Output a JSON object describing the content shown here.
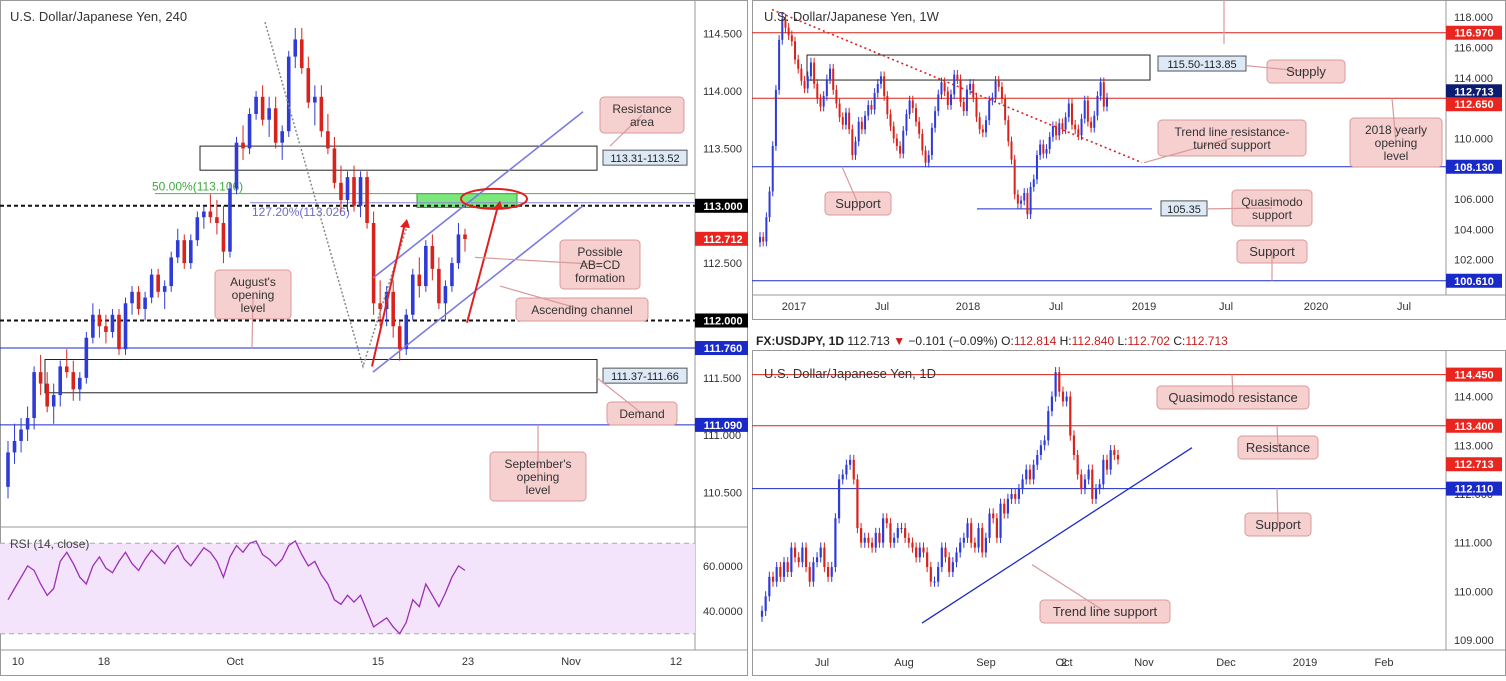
{
  "chart_data": [
    {
      "type": "candlestick",
      "title": "U.S. Dollar/Japanese Yen, 240",
      "y_ticks": [
        "114.500",
        "114.000",
        "113.500",
        "113.000",
        "112.500",
        "112.000",
        "111.500",
        "111.000",
        "110.500"
      ],
      "x_ticks": [
        "10",
        "18",
        "Oct",
        "15",
        "23",
        "Nov",
        "12"
      ],
      "ylim": [
        110.2,
        114.75
      ],
      "price_badges": [
        {
          "value": 113.0,
          "text": "113.000",
          "bg": "#000000"
        },
        {
          "value": 112.712,
          "text": "112.712",
          "bg": "#e8261f"
        },
        {
          "value": 112.0,
          "text": "112.000",
          "bg": "#000000"
        },
        {
          "value": 111.76,
          "text": "111.760",
          "bg": "#1a2ac8"
        },
        {
          "value": 111.09,
          "text": "111.090",
          "bg": "#1a2ac8"
        }
      ],
      "zones": [
        {
          "label": "113.31-113.52",
          "low": 113.31,
          "high": 113.52
        },
        {
          "label": "111.37-111.66",
          "low": 111.37,
          "high": 111.66
        }
      ],
      "fib_labels": {
        "fib50": "50.00%(113.106)",
        "fib127": "127.20%(113.026)"
      },
      "callouts": {
        "resistance_area": [
          "Resistance",
          "area"
        ],
        "ab_cd": [
          "Possible",
          "AB=CD",
          "formation"
        ],
        "ascending_channel": [
          "Ascending channel"
        ],
        "augusts_opening": [
          "August's",
          "opening",
          "level"
        ],
        "demand": [
          "Demand"
        ],
        "septembers_opening": [
          "September's",
          "opening",
          "level"
        ]
      },
      "rsi": {
        "label": "RSI (14, close)",
        "y_ticks": [
          "60.0000",
          "40.0000"
        ],
        "upper": 70,
        "lower": 30
      },
      "candles": [
        [
          110.55,
          110.95,
          110.45,
          110.85
        ],
        [
          110.85,
          111.1,
          110.75,
          110.95
        ],
        [
          110.95,
          111.15,
          110.85,
          111.05
        ],
        [
          111.05,
          111.25,
          110.95,
          111.15
        ],
        [
          111.15,
          111.6,
          111.05,
          111.55
        ],
        [
          111.55,
          111.7,
          111.35,
          111.45
        ],
        [
          111.45,
          111.55,
          111.2,
          111.25
        ],
        [
          111.25,
          111.45,
          111.1,
          111.35
        ],
        [
          111.35,
          111.65,
          111.25,
          111.6
        ],
        [
          111.6,
          111.75,
          111.5,
          111.55
        ],
        [
          111.55,
          111.65,
          111.3,
          111.4
        ],
        [
          111.4,
          111.55,
          111.3,
          111.5
        ],
        [
          111.5,
          111.9,
          111.45,
          111.85
        ],
        [
          111.85,
          112.15,
          111.8,
          112.05
        ],
        [
          112.05,
          112.1,
          111.85,
          111.95
        ],
        [
          111.95,
          112.05,
          111.8,
          111.9
        ],
        [
          111.9,
          112.1,
          111.85,
          112.05
        ],
        [
          112.05,
          112.1,
          111.7,
          111.75
        ],
        [
          111.75,
          112.2,
          111.7,
          112.15
        ],
        [
          112.15,
          112.3,
          112.05,
          112.25
        ],
        [
          112.25,
          112.3,
          112.05,
          112.1
        ],
        [
          112.1,
          112.25,
          112.0,
          112.2
        ],
        [
          112.2,
          112.45,
          112.15,
          112.4
        ],
        [
          112.4,
          112.45,
          112.2,
          112.25
        ],
        [
          112.25,
          112.35,
          112.1,
          112.3
        ],
        [
          112.3,
          112.6,
          112.25,
          112.55
        ],
        [
          112.55,
          112.8,
          112.5,
          112.7
        ],
        [
          112.7,
          112.75,
          112.45,
          112.5
        ],
        [
          112.5,
          112.75,
          112.45,
          112.7
        ],
        [
          112.7,
          112.95,
          112.65,
          112.9
        ],
        [
          112.9,
          113.0,
          112.8,
          112.95
        ],
        [
          112.95,
          113.1,
          112.85,
          112.9
        ],
        [
          112.9,
          113.05,
          112.75,
          112.85
        ],
        [
          112.85,
          113.0,
          112.5,
          112.6
        ],
        [
          112.6,
          113.2,
          112.55,
          113.15
        ],
        [
          113.15,
          113.6,
          113.1,
          113.55
        ],
        [
          113.55,
          113.7,
          113.4,
          113.5
        ],
        [
          113.5,
          113.85,
          113.45,
          113.8
        ],
        [
          113.8,
          114.0,
          113.75,
          113.95
        ],
        [
          113.95,
          114.05,
          113.7,
          113.75
        ],
        [
          113.75,
          113.95,
          113.6,
          113.85
        ],
        [
          113.85,
          113.95,
          113.5,
          113.55
        ],
        [
          113.55,
          113.7,
          113.4,
          113.65
        ],
        [
          113.65,
          114.35,
          113.6,
          114.3
        ],
        [
          114.3,
          114.55,
          114.2,
          114.45
        ],
        [
          114.45,
          114.55,
          114.15,
          114.2
        ],
        [
          114.2,
          114.3,
          113.85,
          113.9
        ],
        [
          113.9,
          114.05,
          113.7,
          113.95
        ],
        [
          113.95,
          114.05,
          113.6,
          113.65
        ],
        [
          113.65,
          113.8,
          113.45,
          113.5
        ],
        [
          113.5,
          113.6,
          113.15,
          113.2
        ],
        [
          113.2,
          113.35,
          112.95,
          113.05
        ],
        [
          113.05,
          113.3,
          112.95,
          113.25
        ],
        [
          113.25,
          113.35,
          112.95,
          113.0
        ],
        [
          113.0,
          113.3,
          112.9,
          113.25
        ],
        [
          113.25,
          113.3,
          112.8,
          112.85
        ],
        [
          112.85,
          112.95,
          112.05,
          112.15
        ],
        [
          112.15,
          112.35,
          111.95,
          112.1
        ],
        [
          112.1,
          112.3,
          111.95,
          112.25
        ],
        [
          112.25,
          112.35,
          111.85,
          111.95
        ],
        [
          111.95,
          112.0,
          111.65,
          111.75
        ],
        [
          111.75,
          112.1,
          111.7,
          112.05
        ],
        [
          112.05,
          112.45,
          112.0,
          112.4
        ],
        [
          112.4,
          112.55,
          112.2,
          112.3
        ],
        [
          112.3,
          112.7,
          112.25,
          112.65
        ],
        [
          112.65,
          112.75,
          112.35,
          112.45
        ],
        [
          112.45,
          112.55,
          112.1,
          112.15
        ],
        [
          112.15,
          112.35,
          112.0,
          112.3
        ],
        [
          112.3,
          112.55,
          112.25,
          112.5
        ],
        [
          112.5,
          112.85,
          112.45,
          112.75
        ],
        [
          112.75,
          112.8,
          112.6,
          112.71
        ]
      ],
      "rsi_values": [
        45,
        50,
        55,
        60,
        58,
        52,
        47,
        50,
        62,
        66,
        61,
        55,
        52,
        60,
        64,
        59,
        57,
        62,
        66,
        61,
        58,
        63,
        67,
        64,
        61,
        66,
        69,
        63,
        60,
        64,
        68,
        66,
        62,
        55,
        64,
        69,
        66,
        70,
        71,
        65,
        63,
        60,
        63,
        69,
        71,
        65,
        60,
        62,
        56,
        52,
        45,
        43,
        47,
        44,
        47,
        40,
        33,
        35,
        37,
        33,
        30,
        35,
        45,
        42,
        52,
        47,
        42,
        48,
        55,
        60,
        58
      ]
    },
    {
      "type": "candlestick",
      "title": "U.S. Dollar/Japanese Yen, 1W",
      "y_ticks": [
        "118.000",
        "116.000",
        "114.000",
        "110.000",
        "106.000",
        "104.000",
        "102.000"
      ],
      "x_ticks": [
        "2017",
        "Jul",
        "2018",
        "Jul",
        "2019",
        "Jul",
        "2020",
        "Jul"
      ],
      "ylim": [
        100.0,
        118.8
      ],
      "price_badges": [
        {
          "value": 116.97,
          "text": "116.970",
          "bg": "#e8261f"
        },
        {
          "value": 112.713,
          "text": "112.713",
          "bg": "#0c1c70"
        },
        {
          "value": 112.65,
          "text": "112.650",
          "bg": "#e8261f"
        },
        {
          "value": 108.13,
          "text": "108.130",
          "bg": "#1a2ac8"
        },
        {
          "value": 100.61,
          "text": "100.610",
          "bg": "#1a2ac8"
        }
      ],
      "zones": [
        {
          "label": "115.50-113.85",
          "low": 113.85,
          "high": 115.5
        }
      ],
      "level_labels": [
        {
          "text": "105.35",
          "value": 105.35
        }
      ],
      "callouts": {
        "supply": [
          "Supply"
        ],
        "trend_resistance": [
          "Trend line resistance-",
          "turned support"
        ],
        "yearly_opening": [
          "2018 yearly",
          "opening",
          "level"
        ],
        "support": [
          "Support"
        ],
        "quasimodo_support": [
          "Quasimodo",
          "support"
        ],
        "support_lower": [
          "Support"
        ]
      },
      "closes": [
        103.5,
        103.2,
        104.8,
        106.5,
        109.5,
        113.2,
        116.5,
        117.9,
        117.3,
        116.8,
        116.4,
        115.2,
        114.6,
        113.8,
        113.3,
        114.1,
        115.0,
        113.6,
        112.6,
        112.1,
        112.8,
        113.9,
        114.6,
        113.2,
        112.3,
        111.4,
        110.9,
        111.7,
        110.6,
        108.9,
        109.8,
        111.1,
        110.6,
        111.5,
        112.2,
        111.9,
        113.0,
        113.6,
        114.1,
        112.8,
        111.6,
        110.8,
        110.0,
        109.5,
        109.0,
        110.5,
        111.6,
        112.5,
        112.0,
        111.1,
        110.3,
        109.2,
        108.4,
        108.9,
        110.7,
        111.8,
        112.9,
        113.7,
        113.1,
        112.2,
        112.9,
        114.2,
        113.9,
        112.4,
        111.8,
        113.2,
        113.6,
        112.7,
        111.4,
        110.6,
        110.4,
        111.2,
        112.5,
        112.7,
        113.8,
        113.4,
        112.6,
        111.2,
        109.8,
        108.6,
        106.3,
        105.7,
        105.9,
        106.4,
        105.0,
        106.8,
        107.3,
        108.9,
        109.6,
        109.0,
        109.3,
        110.1,
        110.8,
        110.2,
        111.0,
        110.6,
        111.4,
        112.3,
        110.9,
        110.6,
        110.2,
        111.3,
        112.5,
        111.1,
        110.7,
        111.5,
        112.8,
        113.7,
        112.1,
        112.7
      ]
    },
    {
      "type": "candlestick",
      "title": "U.S. Dollar/Japanese Yen, 1D",
      "header": {
        "symbol": "FX:USDJPY, 1D",
        "price": "112.713",
        "change": "−0.101 (−0.09%)",
        "o_label": "O:",
        "o": "112.814",
        "h_label": "H:",
        "h": "112.840",
        "l_label": "L:",
        "l": "112.702",
        "c_label": "C:",
        "c": "112.713"
      },
      "y_ticks": [
        "114.000",
        "113.000",
        "112.000",
        "111.000",
        "110.000",
        "109.000"
      ],
      "x_ticks": [
        "Jul",
        "Aug",
        "Sep",
        "2",
        "Oct",
        "Nov",
        "Dec",
        "2019",
        "Feb"
      ],
      "ylim": [
        108.9,
        114.75
      ],
      "price_badges": [
        {
          "value": 114.45,
          "text": "114.450",
          "bg": "#e8261f"
        },
        {
          "value": 113.4,
          "text": "113.400",
          "bg": "#e8261f"
        },
        {
          "value": 112.713,
          "text": "112.713",
          "bg": "#e8261f"
        },
        {
          "value": 112.11,
          "text": "112.110",
          "bg": "#1a2ac8"
        }
      ],
      "callouts": {
        "quasimodo_resistance": [
          "Quasimodo resistance"
        ],
        "resistance": [
          "Resistance"
        ],
        "support": [
          "Support"
        ],
        "trend_support": [
          "Trend line support"
        ]
      },
      "closes": [
        109.6,
        109.9,
        110.3,
        110.2,
        110.5,
        110.3,
        110.6,
        110.4,
        110.9,
        110.7,
        110.6,
        110.9,
        110.5,
        110.2,
        110.6,
        110.7,
        110.9,
        110.5,
        110.3,
        110.5,
        111.5,
        112.3,
        112.4,
        112.6,
        112.7,
        112.3,
        111.3,
        111.0,
        111.1,
        111.0,
        110.9,
        111.2,
        111.0,
        111.5,
        111.4,
        111.0,
        111.1,
        111.3,
        111.3,
        111.1,
        111.0,
        110.9,
        110.7,
        110.9,
        110.8,
        110.5,
        110.2,
        110.2,
        110.5,
        110.9,
        110.7,
        110.4,
        110.6,
        110.8,
        111.0,
        111.1,
        111.4,
        111.0,
        110.9,
        111.3,
        110.8,
        111.1,
        111.6,
        111.5,
        111.1,
        111.8,
        111.6,
        111.9,
        112.0,
        111.9,
        112.1,
        112.3,
        112.5,
        112.3,
        112.6,
        112.8,
        113.0,
        113.1,
        113.7,
        114.0,
        114.5,
        114.1,
        113.9,
        114.0,
        113.2,
        112.8,
        112.4,
        112.1,
        112.3,
        112.5,
        111.9,
        112.1,
        112.2,
        112.7,
        112.5,
        112.9,
        112.8,
        112.71
      ]
    }
  ]
}
